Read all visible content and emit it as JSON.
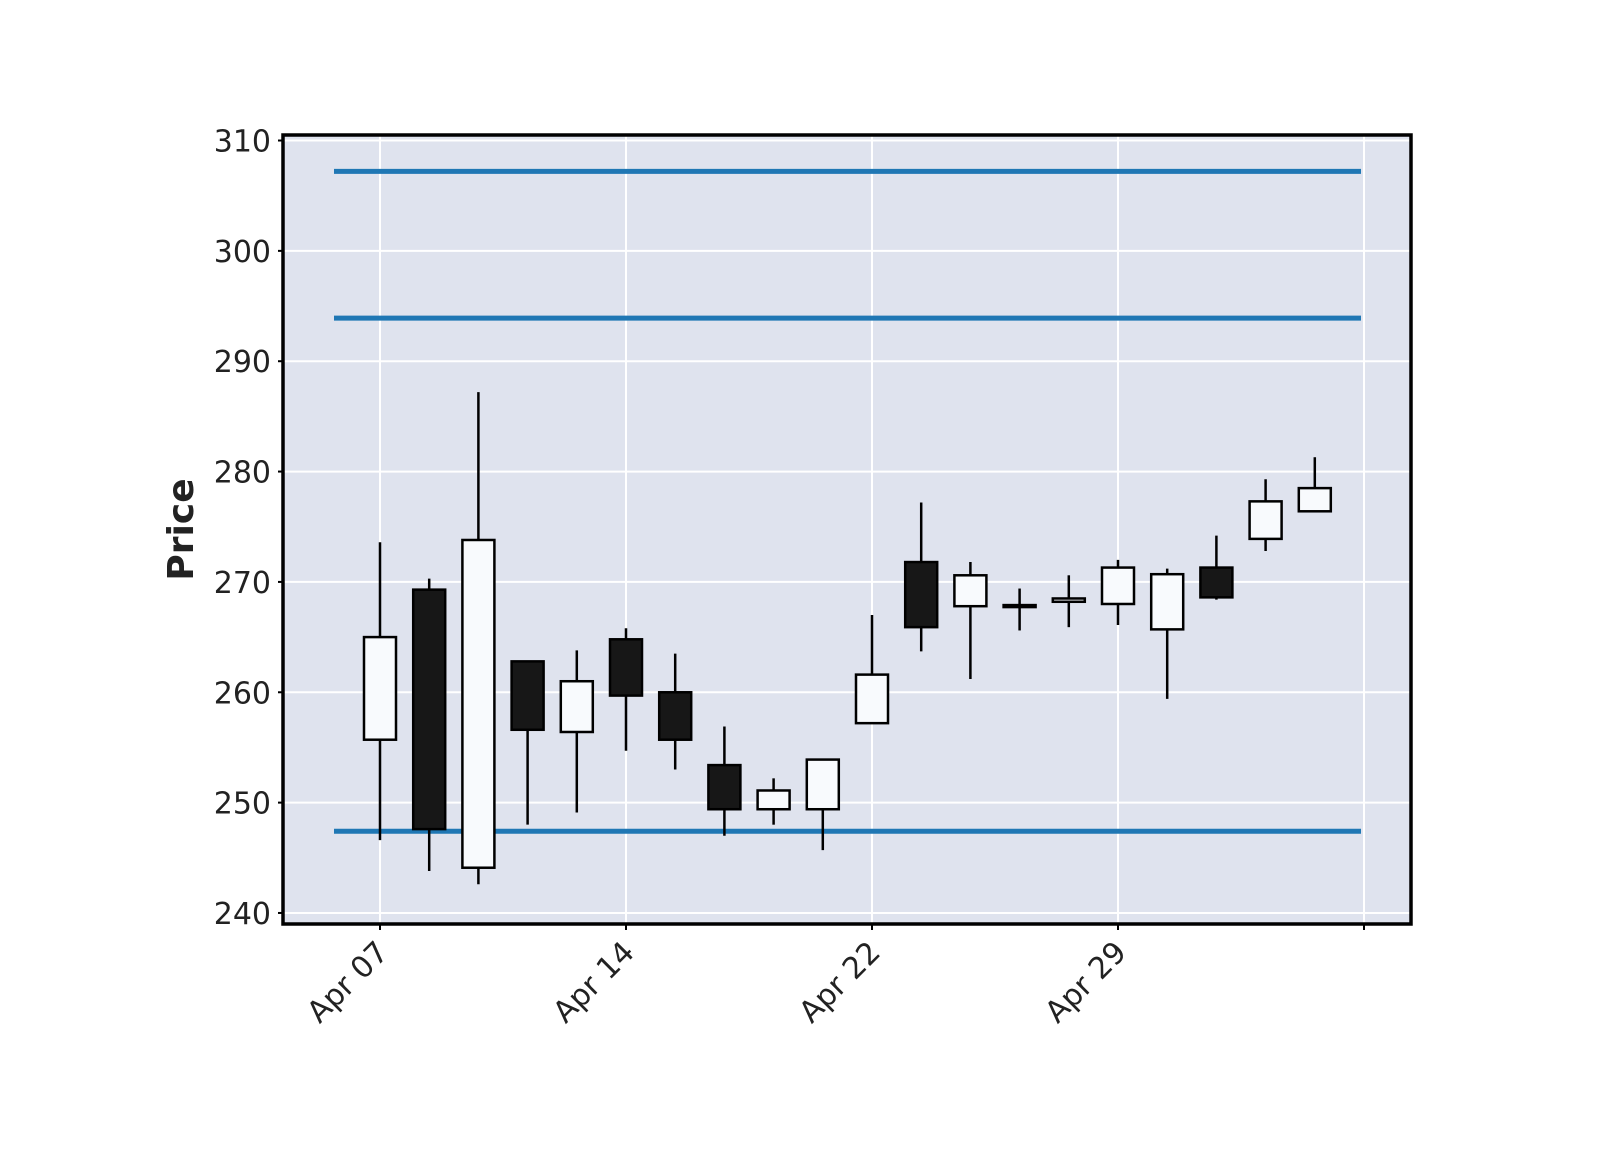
{
  "chart_data": {
    "type": "candlestick",
    "title": "",
    "xlabel": "",
    "ylabel": "Price",
    "ylim": [
      239,
      310.5
    ],
    "yticks": [
      240,
      250,
      260,
      270,
      280,
      290,
      300,
      310
    ],
    "grid": true,
    "colors": {
      "background": "#dfe3ee",
      "grid": "#ffffff",
      "up_fill": "#f8fafd",
      "down_fill": "#171717",
      "outline": "#000000",
      "hlines": "#1f77b4"
    },
    "xticks": [
      {
        "label": "Apr 07",
        "index": 0
      },
      {
        "label": "Apr 14",
        "index": 5
      },
      {
        "label": "Apr 22",
        "index": 10
      },
      {
        "label": "Apr 29",
        "index": 15
      },
      {
        "label": "",
        "index": 20
      }
    ],
    "candles": [
      {
        "open": 255.7,
        "high": 273.6,
        "low": 246.6,
        "close": 265.0
      },
      {
        "open": 269.3,
        "high": 270.3,
        "low": 243.8,
        "close": 247.6
      },
      {
        "open": 244.1,
        "high": 287.2,
        "low": 242.6,
        "close": 273.8
      },
      {
        "open": 262.8,
        "high": 262.8,
        "low": 248.0,
        "close": 256.6
      },
      {
        "open": 256.4,
        "high": 263.8,
        "low": 249.1,
        "close": 261.0
      },
      {
        "open": 264.8,
        "high": 265.8,
        "low": 254.7,
        "close": 259.7
      },
      {
        "open": 260.0,
        "high": 263.5,
        "low": 253.0,
        "close": 255.7
      },
      {
        "open": 253.4,
        "high": 256.9,
        "low": 247.0,
        "close": 249.4
      },
      {
        "open": 249.4,
        "high": 252.2,
        "low": 248.0,
        "close": 251.1
      },
      {
        "open": 249.4,
        "high": 253.9,
        "low": 245.7,
        "close": 253.9
      },
      {
        "open": 257.2,
        "high": 267.0,
        "low": 257.2,
        "close": 261.6
      },
      {
        "open": 271.8,
        "high": 277.2,
        "low": 263.7,
        "close": 265.9
      },
      {
        "open": 267.8,
        "high": 271.8,
        "low": 261.2,
        "close": 270.6
      },
      {
        "open": 267.8,
        "high": 269.4,
        "low": 265.6,
        "close": 267.9
      },
      {
        "open": 268.2,
        "high": 270.6,
        "low": 265.9,
        "close": 268.5
      },
      {
        "open": 268.0,
        "high": 272.0,
        "low": 266.1,
        "close": 271.3
      },
      {
        "open": 265.7,
        "high": 271.2,
        "low": 259.4,
        "close": 270.7
      },
      {
        "open": 271.3,
        "high": 274.2,
        "low": 268.4,
        "close": 268.6
      },
      {
        "open": 273.9,
        "high": 279.3,
        "low": 272.8,
        "close": 277.3
      },
      {
        "open": 276.4,
        "high": 281.3,
        "low": 276.4,
        "close": 278.5
      }
    ],
    "hlines": [
      307.2,
      293.9,
      247.4
    ]
  }
}
